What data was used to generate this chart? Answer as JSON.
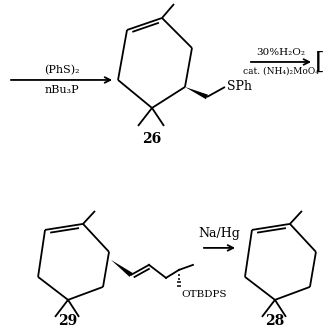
{
  "bg_color": "#ffffff",
  "line_color": "#000000",
  "fig_width": 3.32,
  "fig_height": 3.32,
  "dpi": 100,
  "top_section": {
    "reagent_left_line1": "(PhS)₂",
    "reagent_left_line2": "nBu₃P",
    "compound26_label": "26",
    "SPh_label": "SPh",
    "reagent_right_top": "30%H₂O₂",
    "reagent_right_bot": "cat. (NH₄)₂MoO₄",
    "bracket": "["
  },
  "bottom_section": {
    "Na_Hg_label": "Na/Hg",
    "OTBDPS_label": "OTBDPS",
    "compound29_label": "29",
    "compound28_label": "28"
  }
}
